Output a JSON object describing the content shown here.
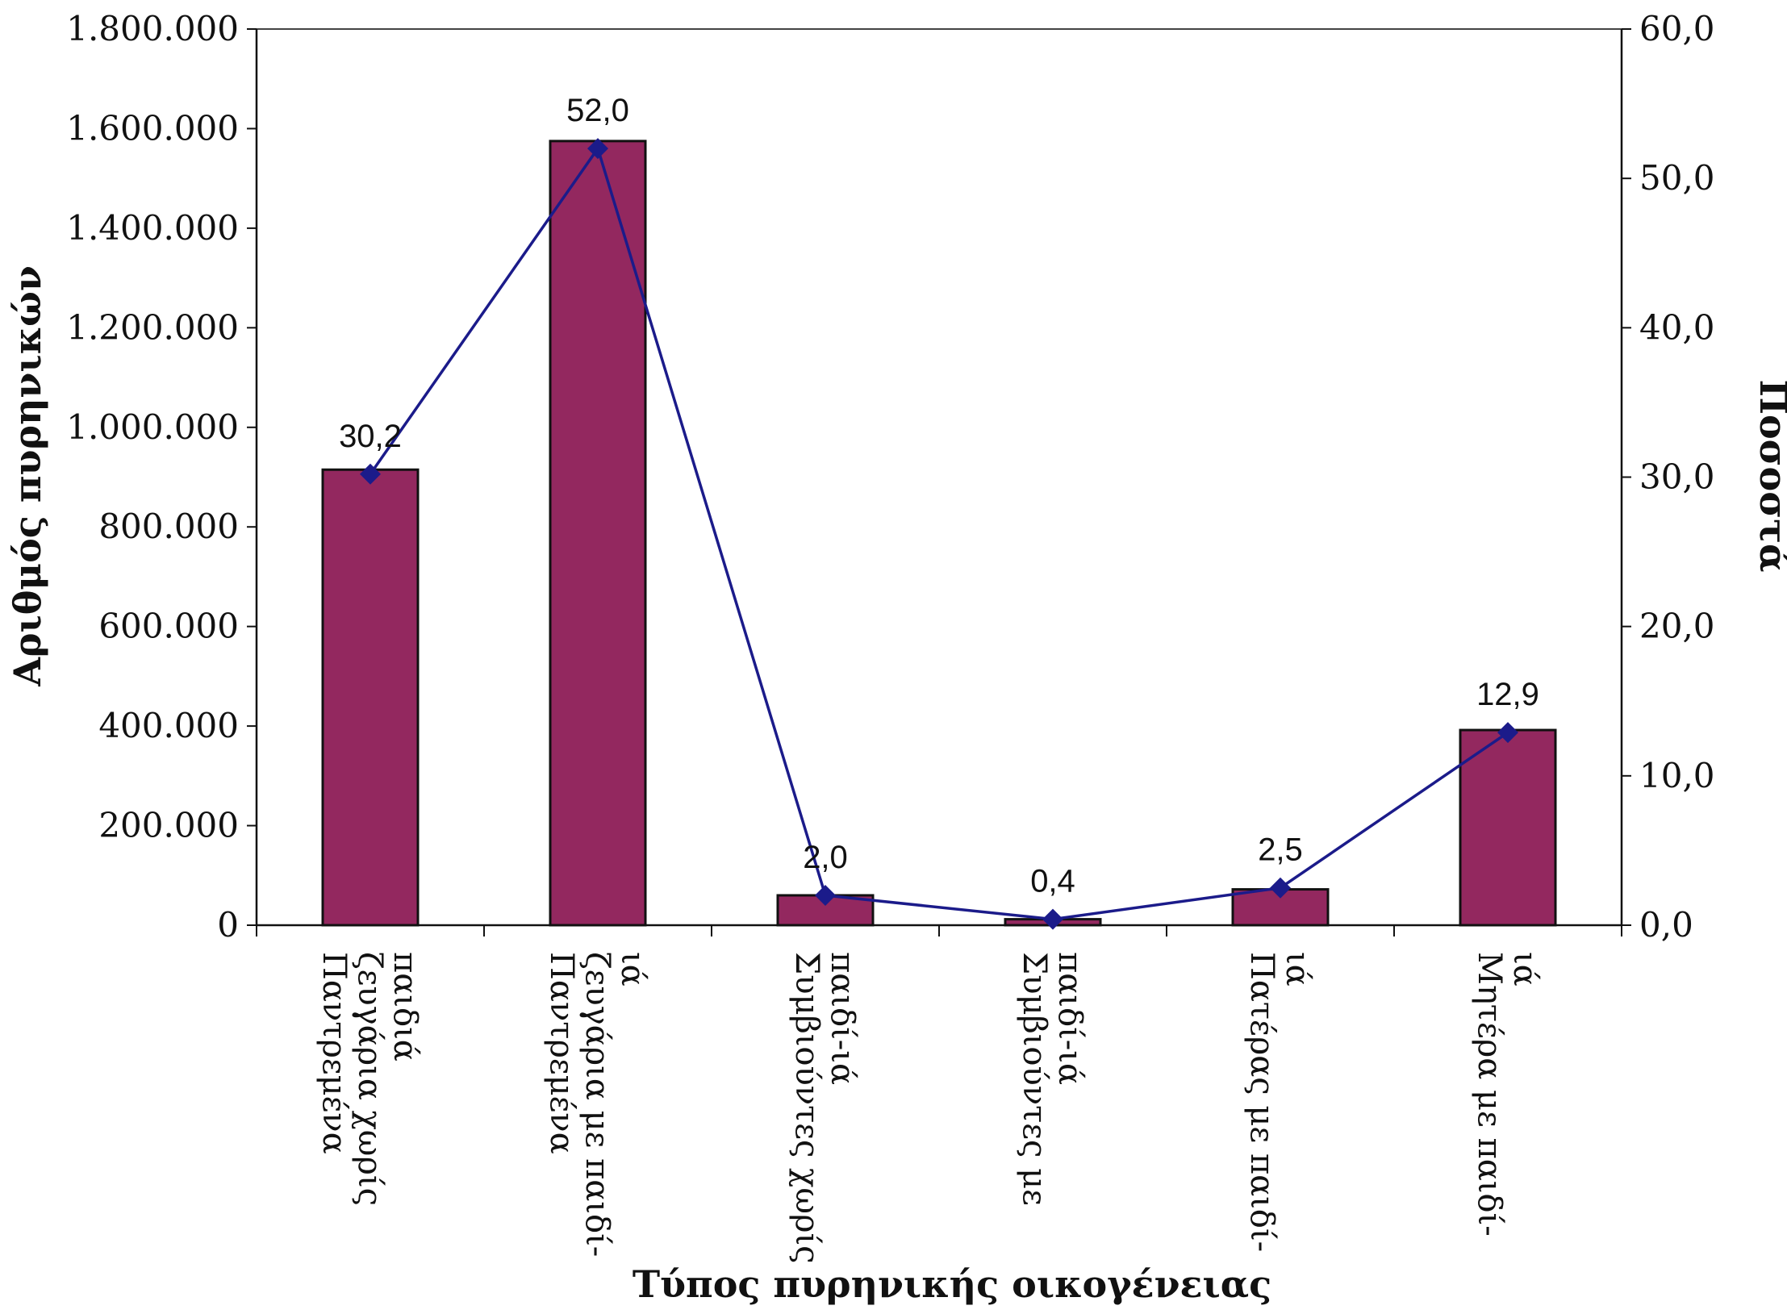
{
  "chart_data": {
    "type": "bar",
    "xlabel": "Τύπος πυρηνικής οικογένειας",
    "ylabel": "Αριθμός πυρηνικών",
    "y2label": "Ποσοστά",
    "ylim": [
      0,
      1800000
    ],
    "y2lim": [
      0,
      60
    ],
    "grid": false,
    "legend": "none",
    "yticks": [
      "0",
      "200.000",
      "400.000",
      "600.000",
      "800.000",
      "1.000.000",
      "1.200.000",
      "1.400.000",
      "1.600.000",
      "1.800.000"
    ],
    "y2ticks": [
      "0,0",
      "10,0",
      "20,0",
      "30,0",
      "40,0",
      "50,0",
      "60,0"
    ],
    "categories": [
      [
        "Παντρεμένα",
        "ζευγάρια χωρίς",
        "παιδιά"
      ],
      [
        "Παντρεμένα",
        "ζευγάρια με παιδί-",
        "ιά"
      ],
      [
        "Συμβιούντες χωρίς",
        "παιδί-ιά"
      ],
      [
        "Συμβιούντες με",
        "παιδί-ιά"
      ],
      [
        "Πατέρας με παιδί-",
        "ιά"
      ],
      [
        "Μητέρα με παιδί-",
        "ιά"
      ]
    ],
    "series": [
      {
        "type": "bar",
        "axis": "left",
        "color": "#93285f",
        "values": [
          915000,
          1575000,
          60000,
          12000,
          72000,
          392000
        ]
      },
      {
        "type": "line",
        "axis": "right",
        "color": "#1b1b8a",
        "values": [
          30.2,
          52.0,
          2.0,
          0.4,
          2.5,
          12.9
        ],
        "labels": [
          "30,2",
          "52,0",
          "2,0",
          "0,4",
          "2,5",
          "12,9"
        ]
      }
    ]
  }
}
